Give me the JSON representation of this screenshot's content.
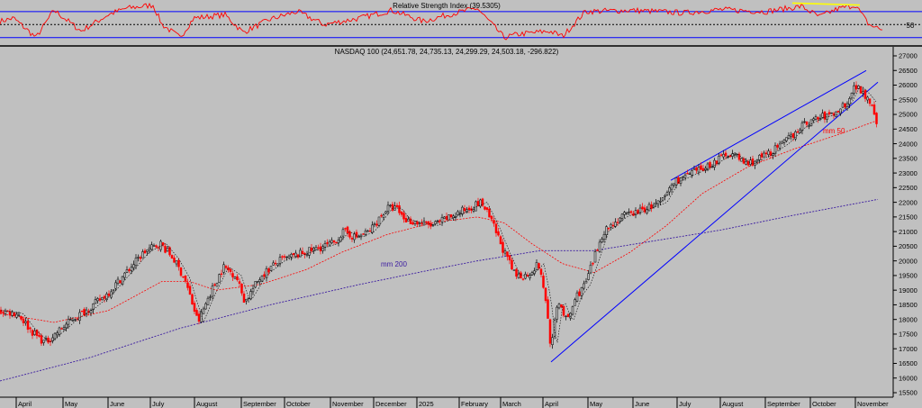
{
  "colors": {
    "background": "#c0c0c0",
    "up_candle": "#000000",
    "down_candle": "#ff0000",
    "rsi_line": "#ff0000",
    "rsi_bounds": "#0000ff",
    "trend": "#0000ff",
    "ma50": "#ff0000",
    "ma200": "#3a1aa0",
    "divergence": "#ffff00",
    "axis": "#000000"
  },
  "chart_data": [
    {
      "type": "line",
      "title": "Relative Strength Index (39.5305)",
      "rsi_current": 39.5305,
      "levels": [
        30,
        50,
        70
      ],
      "level_label": "50",
      "ylim": [
        20,
        85
      ],
      "keypoints": [
        [
          0,
          55
        ],
        [
          15,
          60
        ],
        [
          40,
          30
        ],
        [
          60,
          72
        ],
        [
          90,
          40
        ],
        [
          120,
          65
        ],
        [
          140,
          75
        ],
        [
          170,
          80
        ],
        [
          180,
          50
        ],
        [
          200,
          30
        ],
        [
          215,
          60
        ],
        [
          250,
          65
        ],
        [
          270,
          38
        ],
        [
          300,
          58
        ],
        [
          330,
          70
        ],
        [
          360,
          50
        ],
        [
          400,
          60
        ],
        [
          435,
          72
        ],
        [
          470,
          55
        ],
        [
          500,
          66
        ],
        [
          530,
          75
        ],
        [
          560,
          30
        ],
        [
          575,
          35
        ],
        [
          610,
          40
        ],
        [
          625,
          32
        ],
        [
          650,
          70
        ],
        [
          700,
          72
        ],
        [
          760,
          68
        ],
        [
          800,
          73
        ],
        [
          850,
          70
        ],
        [
          890,
          78
        ],
        [
          910,
          62
        ],
        [
          930,
          74
        ],
        [
          950,
          80
        ],
        [
          965,
          50
        ],
        [
          980,
          42
        ]
      ],
      "divergence_line": [
        [
          880,
          83
        ],
        [
          955,
          80
        ]
      ]
    },
    {
      "type": "bar",
      "subtype": "candlestick",
      "title": "NASDAQ 100 (24,651.78, 24,735.13, 24,299.29, 24,503.18, -296.822)",
      "ohlc_last": {
        "open": 24651.78,
        "high": 24735.13,
        "low": 24299.29,
        "close": 24503.18,
        "change": -296.822
      },
      "ylim": [
        15500,
        27000
      ],
      "yticks": [
        15500,
        16000,
        16500,
        17000,
        17500,
        18000,
        18500,
        19000,
        19500,
        20000,
        20500,
        21000,
        21500,
        22000,
        22500,
        23000,
        23500,
        24000,
        24500,
        25000,
        25500,
        26000,
        26500,
        27000
      ],
      "xlabels": [
        {
          "label": "April",
          "x": 18
        },
        {
          "label": "May",
          "x": 70
        },
        {
          "label": "June",
          "x": 120
        },
        {
          "label": "July",
          "x": 167
        },
        {
          "label": "August",
          "x": 216
        },
        {
          "label": "September",
          "x": 268
        },
        {
          "label": "October",
          "x": 316
        },
        {
          "label": "November",
          "x": 367
        },
        {
          "label": "December",
          "x": 415
        },
        {
          "label": "2025",
          "x": 463
        },
        {
          "label": "February",
          "x": 510
        },
        {
          "label": "March",
          "x": 556
        },
        {
          "label": "April",
          "x": 603
        },
        {
          "label": "May",
          "x": 653
        },
        {
          "label": "June",
          "x": 703
        },
        {
          "label": "July",
          "x": 752
        },
        {
          "label": "August",
          "x": 800
        },
        {
          "label": "September",
          "x": 850
        },
        {
          "label": "October",
          "x": 900
        },
        {
          "label": "November",
          "x": 950
        }
      ],
      "price_keypoints": [
        [
          0,
          18300
        ],
        [
          20,
          18200
        ],
        [
          35,
          17600
        ],
        [
          50,
          17200
        ],
        [
          65,
          17600
        ],
        [
          80,
          18000
        ],
        [
          100,
          18400
        ],
        [
          120,
          18900
        ],
        [
          140,
          19600
        ],
        [
          160,
          20300
        ],
        [
          178,
          20600
        ],
        [
          192,
          20100
        ],
        [
          205,
          19400
        ],
        [
          220,
          17900
        ],
        [
          232,
          18800
        ],
        [
          248,
          19800
        ],
        [
          262,
          19500
        ],
        [
          272,
          18600
        ],
        [
          290,
          19500
        ],
        [
          310,
          20000
        ],
        [
          330,
          20200
        ],
        [
          350,
          20400
        ],
        [
          370,
          20600
        ],
        [
          382,
          21000
        ],
        [
          395,
          20800
        ],
        [
          410,
          21000
        ],
        [
          430,
          21800
        ],
        [
          440,
          21800
        ],
        [
          450,
          21400
        ],
        [
          465,
          21300
        ],
        [
          480,
          21200
        ],
        [
          500,
          21500
        ],
        [
          520,
          21800
        ],
        [
          535,
          22000
        ],
        [
          548,
          21200
        ],
        [
          560,
          20300
        ],
        [
          572,
          19500
        ],
        [
          585,
          19500
        ],
        [
          598,
          19900
        ],
        [
          606,
          18700
        ],
        [
          612,
          17000
        ],
        [
          620,
          18700
        ],
        [
          630,
          17900
        ],
        [
          640,
          18800
        ],
        [
          650,
          19200
        ],
        [
          660,
          20100
        ],
        [
          670,
          21000
        ],
        [
          690,
          21500
        ],
        [
          710,
          21700
        ],
        [
          735,
          22000
        ],
        [
          748,
          22700
        ],
        [
          770,
          23000
        ],
        [
          790,
          23300
        ],
        [
          810,
          23700
        ],
        [
          830,
          23300
        ],
        [
          850,
          23600
        ],
        [
          870,
          24000
        ],
        [
          890,
          24600
        ],
        [
          910,
          24900
        ],
        [
          925,
          25000
        ],
        [
          940,
          25400
        ],
        [
          950,
          26000
        ],
        [
          960,
          25700
        ],
        [
          968,
          25400
        ],
        [
          975,
          24600
        ]
      ],
      "ma50_label": "mm 50",
      "ma200_label": "mm 200",
      "ma50_keypoints": [
        [
          0,
          18200
        ],
        [
          60,
          17900
        ],
        [
          120,
          18300
        ],
        [
          180,
          19300
        ],
        [
          210,
          19300
        ],
        [
          240,
          19000
        ],
        [
          290,
          19200
        ],
        [
          340,
          19700
        ],
        [
          380,
          20300
        ],
        [
          430,
          20900
        ],
        [
          480,
          21300
        ],
        [
          530,
          21500
        ],
        [
          560,
          21300
        ],
        [
          590,
          20600
        ],
        [
          625,
          19900
        ],
        [
          660,
          19600
        ],
        [
          700,
          20300
        ],
        [
          740,
          21200
        ],
        [
          780,
          22300
        ],
        [
          830,
          23200
        ],
        [
          880,
          23800
        ],
        [
          930,
          24300
        ],
        [
          975,
          24800
        ]
      ],
      "ma200_keypoints": [
        [
          0,
          15900
        ],
        [
          100,
          16700
        ],
        [
          200,
          17700
        ],
        [
          300,
          18500
        ],
        [
          400,
          19200
        ],
        [
          480,
          19700
        ],
        [
          530,
          20000
        ],
        [
          560,
          20150
        ],
        [
          600,
          20350
        ],
        [
          660,
          20350
        ],
        [
          720,
          20650
        ],
        [
          800,
          21050
        ],
        [
          880,
          21550
        ],
        [
          975,
          22100
        ]
      ],
      "trendlines": [
        {
          "from": [
            612,
            16550
          ],
          "to": [
            975,
            26100
          ]
        },
        {
          "from": [
            745,
            22750
          ],
          "to": [
            962,
            26500
          ]
        }
      ]
    }
  ]
}
